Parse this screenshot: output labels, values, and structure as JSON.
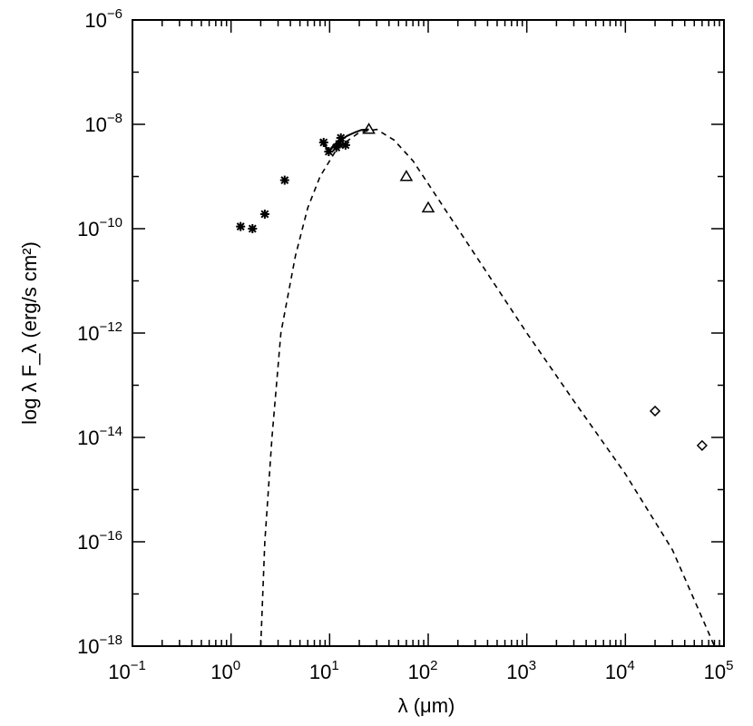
{
  "chart_data": {
    "type": "scatter",
    "title": "",
    "xlabel": "λ (μm)",
    "ylabel": "log λ F_λ (erg/s cm²)",
    "x_scale": "log",
    "y_scale": "log",
    "xlim": [
      0.1,
      100000
    ],
    "ylim": [
      1e-18,
      1e-06
    ],
    "grid": false,
    "x_ticks": [
      {
        "base": "10",
        "exp": "−1",
        "value": 0.1
      },
      {
        "base": "10",
        "exp": "0",
        "value": 1
      },
      {
        "base": "10",
        "exp": "1",
        "value": 10
      },
      {
        "base": "10",
        "exp": "2",
        "value": 100
      },
      {
        "base": "10",
        "exp": "3",
        "value": 1000
      },
      {
        "base": "10",
        "exp": "4",
        "value": 10000
      },
      {
        "base": "10",
        "exp": "5",
        "value": 100000
      }
    ],
    "y_ticks": [
      {
        "base": "10",
        "exp": "−6",
        "value": 1e-06
      },
      {
        "base": "10",
        "exp": "−8",
        "value": 1e-08
      },
      {
        "base": "10",
        "exp": "−10",
        "value": 1e-10
      },
      {
        "base": "10",
        "exp": "−12",
        "value": 1e-12
      },
      {
        "base": "10",
        "exp": "−14",
        "value": 1e-14
      },
      {
        "base": "10",
        "exp": "−16",
        "value": 1e-16
      },
      {
        "base": "10",
        "exp": "−18",
        "value": 1e-18
      }
    ],
    "series": [
      {
        "marker": "asterisk",
        "points": [
          {
            "x": 1.25,
            "y": 1.1e-10
          },
          {
            "x": 1.65,
            "y": 1e-10
          },
          {
            "x": 2.2,
            "y": 1.9e-10
          },
          {
            "x": 3.5,
            "y": 8.5e-10
          },
          {
            "x": 8.7,
            "y": 4.5e-09
          },
          {
            "x": 9.8,
            "y": 3e-09
          },
          {
            "x": 11.7,
            "y": 3.6e-09
          },
          {
            "x": 12.5,
            "y": 4.2e-09
          },
          {
            "x": 13.0,
            "y": 5.5e-09
          },
          {
            "x": 14.5,
            "y": 4e-09
          }
        ]
      },
      {
        "marker": "spectrum",
        "points": [
          {
            "x": 8.0,
            "y": 5.2e-09
          },
          {
            "x": 9.0,
            "y": 3.8e-09
          },
          {
            "x": 10.0,
            "y": 3.2e-09
          },
          {
            "x": 11.0,
            "y": 4e-09
          },
          {
            "x": 12.0,
            "y": 4.6e-09
          },
          {
            "x": 13.0,
            "y": 5e-09
          },
          {
            "x": 15.0,
            "y": 6e-09
          },
          {
            "x": 18.0,
            "y": 7e-09
          },
          {
            "x": 21.0,
            "y": 7.8e-09
          },
          {
            "x": 25.0,
            "y": 8e-09
          }
        ]
      },
      {
        "marker": "triangle",
        "points": [
          {
            "x": 25,
            "y": 8e-09
          },
          {
            "x": 60,
            "y": 1e-09
          },
          {
            "x": 100,
            "y": 2.5e-10
          }
        ]
      },
      {
        "marker": "diamond",
        "points": [
          {
            "x": 20000,
            "y": 3.2e-14
          },
          {
            "x": 60000,
            "y": 7e-15
          }
        ]
      },
      {
        "marker": "dashed-line",
        "points": [
          {
            "x": 2.0,
            "y": 1e-18
          },
          {
            "x": 2.2,
            "y": 1e-16
          },
          {
            "x": 2.6,
            "y": 1e-14
          },
          {
            "x": 3.2,
            "y": 1e-12
          },
          {
            "x": 4.5,
            "y": 3e-11
          },
          {
            "x": 6.0,
            "y": 2.5e-10
          },
          {
            "x": 8.0,
            "y": 1e-09
          },
          {
            "x": 12.0,
            "y": 3.5e-09
          },
          {
            "x": 20.0,
            "y": 7e-09
          },
          {
            "x": 30.0,
            "y": 8e-09
          },
          {
            "x": 45.0,
            "y": 5e-09
          },
          {
            "x": 70.0,
            "y": 2e-09
          },
          {
            "x": 110.0,
            "y": 5.5e-10
          },
          {
            "x": 200.0,
            "y": 1e-10
          },
          {
            "x": 1000.0,
            "y": 1e-12
          },
          {
            "x": 3000.0,
            "y": 5e-14
          },
          {
            "x": 10000.0,
            "y": 2e-15
          },
          {
            "x": 30000.0,
            "y": 7e-17
          },
          {
            "x": 80000.0,
            "y": 1e-18
          }
        ]
      }
    ]
  }
}
